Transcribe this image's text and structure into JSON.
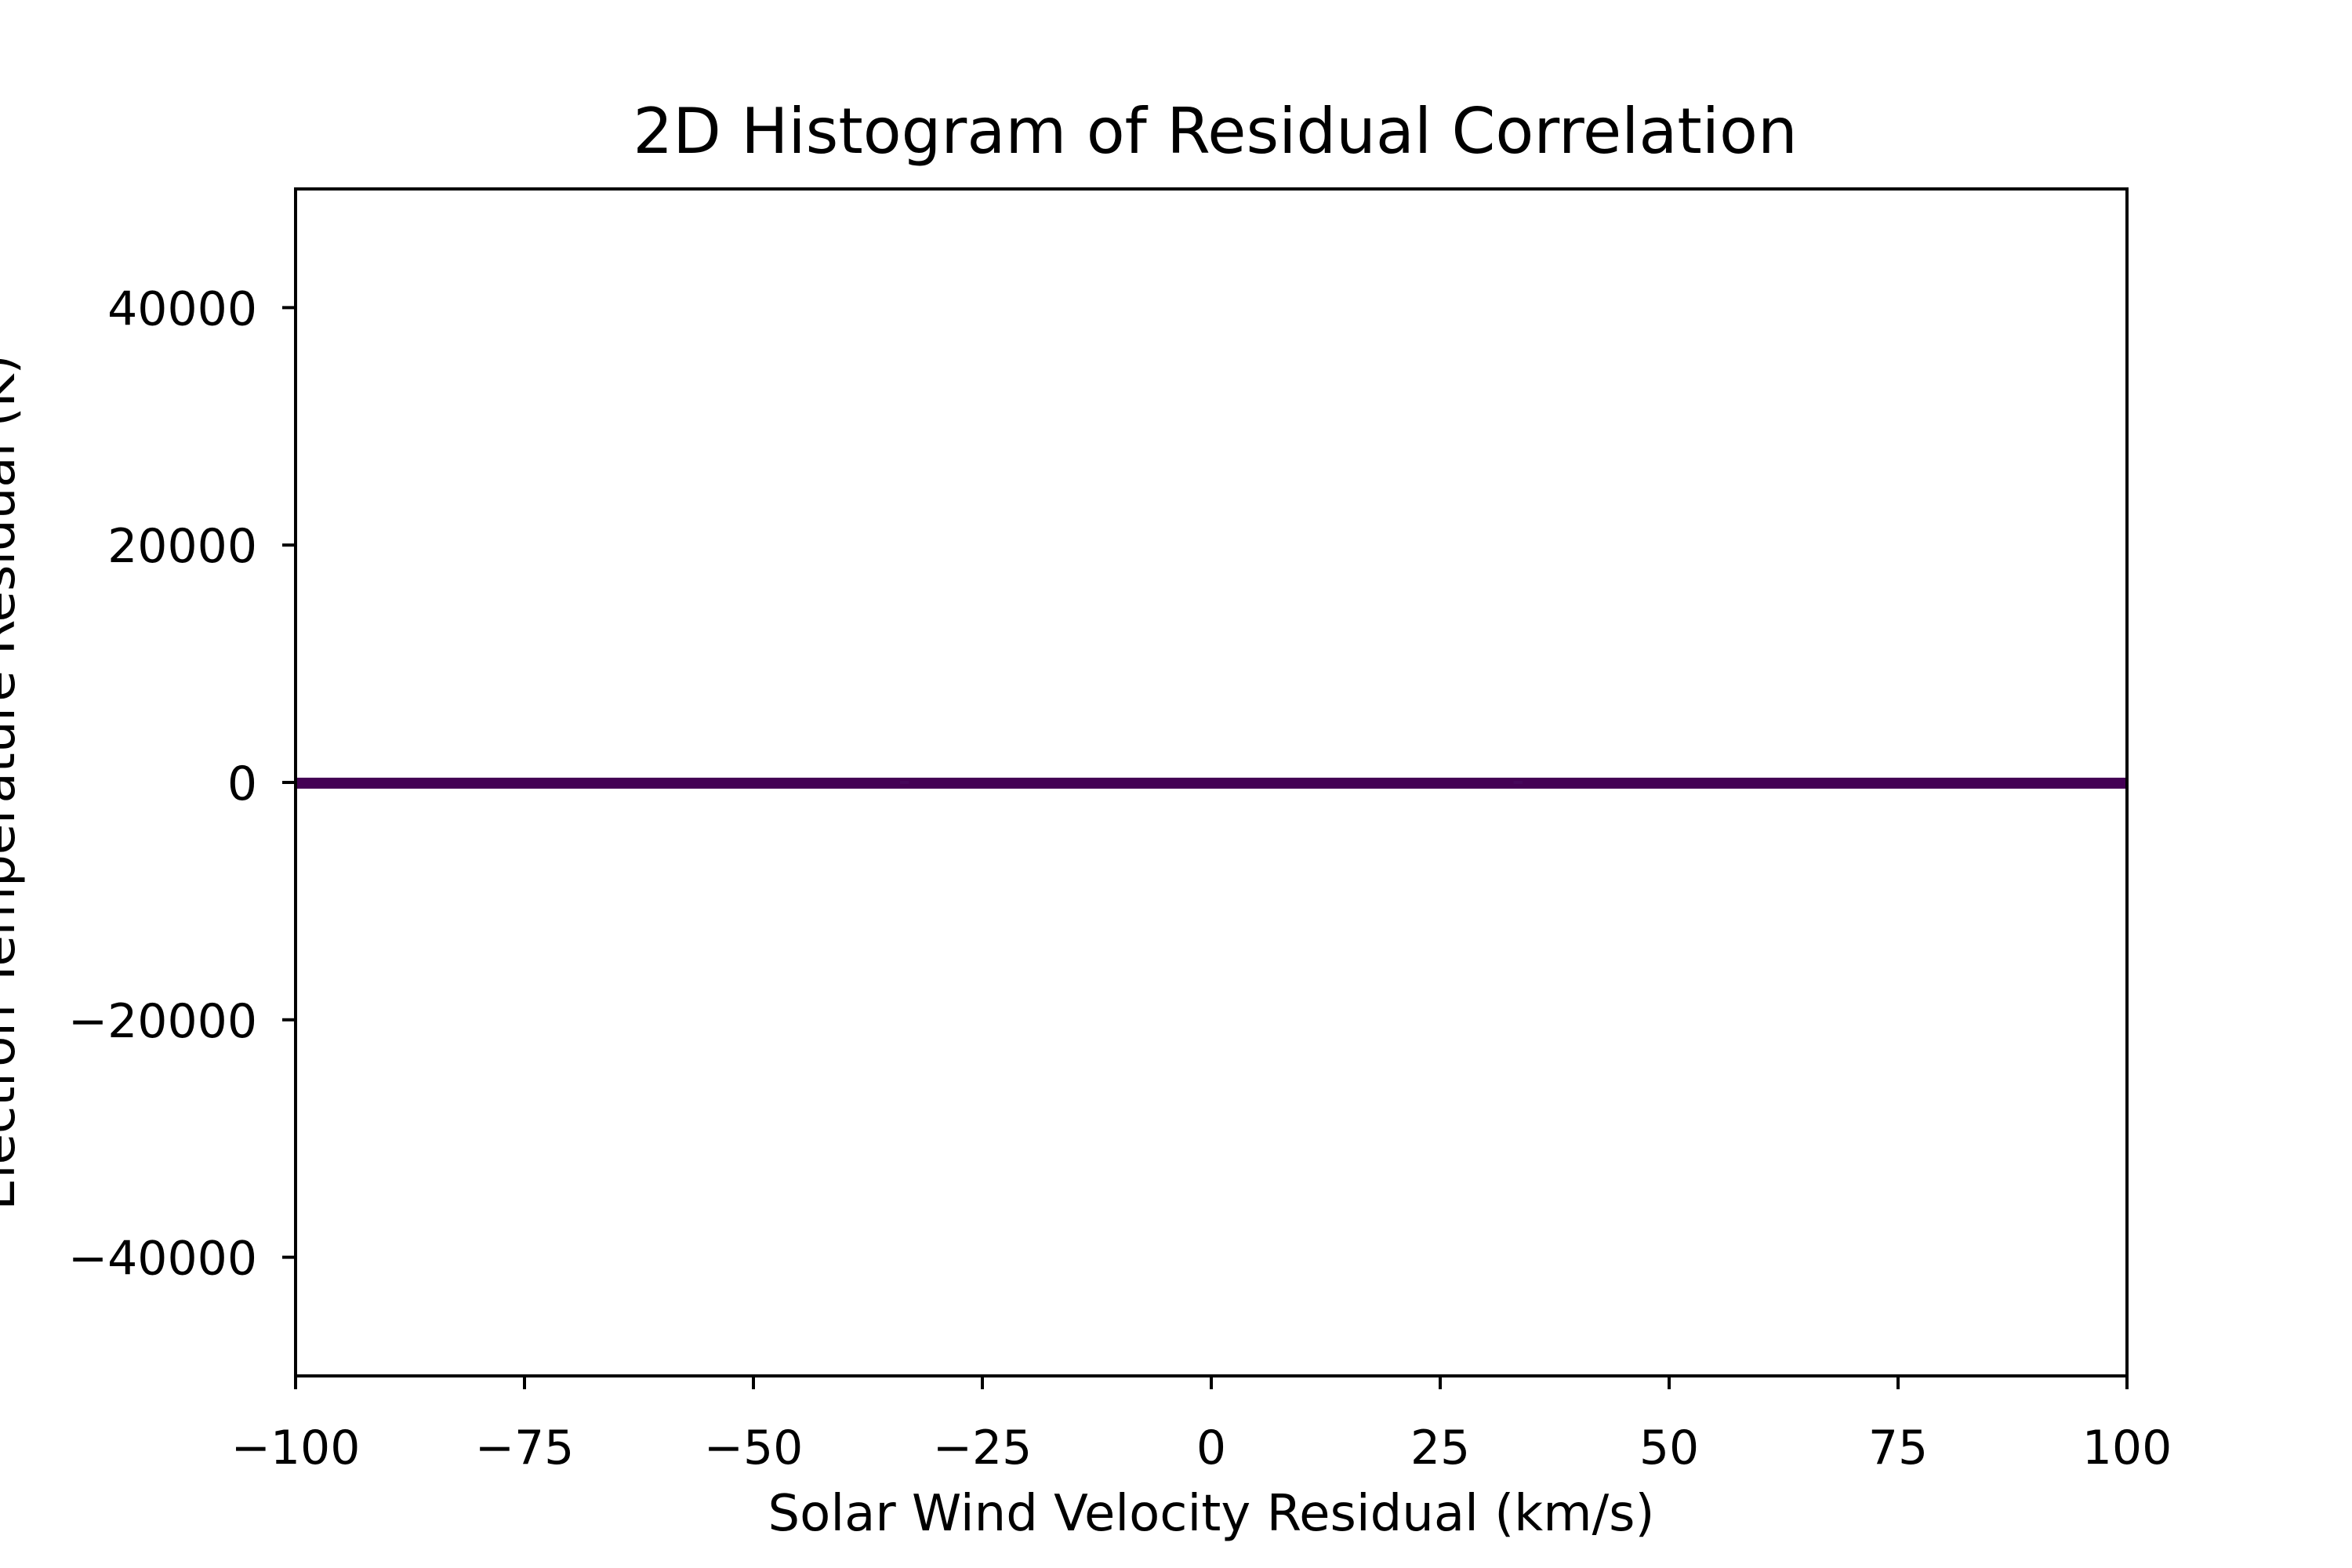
{
  "chart_data": {
    "type": "heatmap",
    "title": "2D Histogram of Residual Correlation",
    "xlabel": "Solar Wind Velocity Residual (km/s)",
    "ylabel": "Electron Temperature Residual (K)",
    "xlim": [
      -100,
      100
    ],
    "ylim": [
      -50000,
      50000
    ],
    "x_ticks": [
      -100,
      -75,
      -50,
      -25,
      0,
      25,
      50,
      75,
      100
    ],
    "x_tick_labels": [
      "−100",
      "−75",
      "−50",
      "−25",
      "0",
      "25",
      "50",
      "75",
      "100"
    ],
    "y_ticks": [
      -40000,
      -20000,
      0,
      20000,
      40000
    ],
    "y_tick_labels": [
      "−40000",
      "−20000",
      "0",
      "20000",
      "40000"
    ],
    "grid": false,
    "colormap": "viridis",
    "band": {
      "x_range": [
        -100,
        100
      ],
      "y_range": [
        -400,
        400
      ],
      "color": "#440154"
    },
    "cells": [
      {
        "x_range": [
          -34,
          -33
        ],
        "y_range": [
          -400,
          400
        ],
        "color": "#46075a"
      },
      {
        "x_range": [
          33,
          34
        ],
        "y_range": [
          -400,
          400
        ],
        "color": "#46075a"
      }
    ]
  }
}
